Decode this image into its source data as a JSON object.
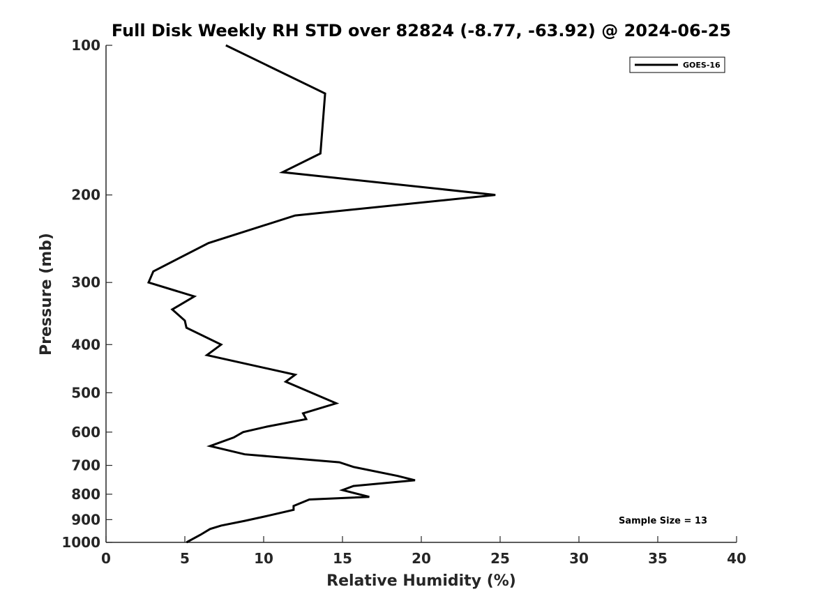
{
  "chart_data": {
    "type": "line",
    "title": "Full Disk Weekly RH STD over 82824 (-8.77, -63.92) @ 2024-06-25",
    "xlabel": "Relative Humidity (%)",
    "ylabel": "Pressure (mb)",
    "xlim": [
      0,
      40
    ],
    "ylim": [
      100,
      1000
    ],
    "y_scale": "log",
    "y_reversed": true,
    "x_ticks": [
      "0",
      "5",
      "10",
      "15",
      "20",
      "25",
      "30",
      "35",
      "40"
    ],
    "y_ticks": [
      "100",
      "200",
      "300",
      "400",
      "500",
      "600",
      "700",
      "800",
      "900",
      "1000"
    ],
    "grid": false,
    "legend_position": "top-right",
    "series": [
      {
        "name": "GOES-16",
        "color": "#000000",
        "points": [
          [
            7.6,
            100
          ],
          [
            13.9,
            125
          ],
          [
            13.6,
            165
          ],
          [
            11.2,
            180
          ],
          [
            24.7,
            200
          ],
          [
            12.0,
            220
          ],
          [
            6.5,
            250
          ],
          [
            3.0,
            285
          ],
          [
            2.7,
            300
          ],
          [
            5.6,
            320
          ],
          [
            4.2,
            340
          ],
          [
            5.0,
            358
          ],
          [
            5.1,
            370
          ],
          [
            7.3,
            400
          ],
          [
            6.4,
            420
          ],
          [
            12.0,
            460
          ],
          [
            11.4,
            475
          ],
          [
            14.6,
            525
          ],
          [
            12.5,
            550
          ],
          [
            12.7,
            565
          ],
          [
            10.2,
            585
          ],
          [
            8.7,
            600
          ],
          [
            8.1,
            615
          ],
          [
            6.6,
            640
          ],
          [
            8.8,
            665
          ],
          [
            14.8,
            690
          ],
          [
            15.7,
            705
          ],
          [
            18.5,
            735
          ],
          [
            19.6,
            750
          ],
          [
            15.7,
            770
          ],
          [
            15.0,
            785
          ],
          [
            16.7,
            810
          ],
          [
            12.9,
            820
          ],
          [
            11.9,
            845
          ],
          [
            11.9,
            860
          ],
          [
            10.2,
            885
          ],
          [
            8.8,
            905
          ],
          [
            7.3,
            925
          ],
          [
            6.6,
            940
          ],
          [
            6.0,
            965
          ],
          [
            5.1,
            1000
          ]
        ]
      }
    ],
    "annotations": [
      "Sample Size = 13"
    ]
  }
}
